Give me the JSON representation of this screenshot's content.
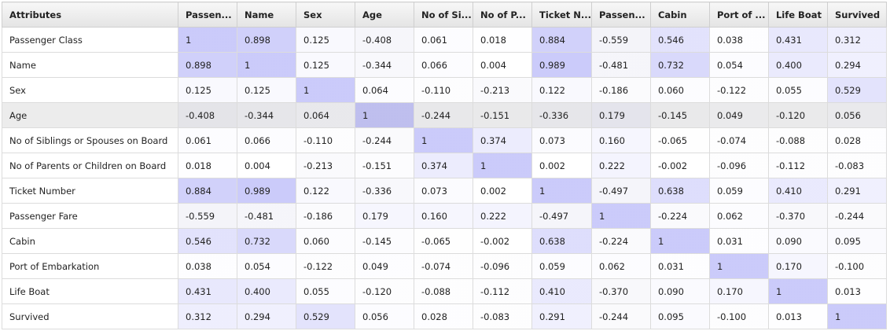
{
  "table": {
    "columns": [
      "Attributes",
      "Passen...",
      "Name",
      "Sex",
      "Age",
      "No of Si...",
      "No of P...",
      "Ticket N...",
      "Passen...",
      "Cabin",
      "Port of ...",
      "Life Boat",
      "Survived"
    ],
    "rows": [
      {
        "label": "Passenger Class",
        "cells": [
          "1",
          "0.898",
          "0.125",
          "-0.408",
          "0.061",
          "0.018",
          "0.884",
          "-0.559",
          "0.546",
          "0.038",
          "0.431",
          "0.312"
        ]
      },
      {
        "label": "Name",
        "cells": [
          "0.898",
          "1",
          "0.125",
          "-0.344",
          "0.066",
          "0.004",
          "0.989",
          "-0.481",
          "0.732",
          "0.054",
          "0.400",
          "0.294"
        ]
      },
      {
        "label": "Sex",
        "cells": [
          "0.125",
          "0.125",
          "1",
          "0.064",
          "-0.110",
          "-0.213",
          "0.122",
          "-0.186",
          "0.060",
          "-0.122",
          "0.055",
          "0.529"
        ]
      },
      {
        "label": "Age",
        "cells": [
          "-0.408",
          "-0.344",
          "0.064",
          "1",
          "-0.244",
          "-0.151",
          "-0.336",
          "0.179",
          "-0.145",
          "0.049",
          "-0.120",
          "0.056"
        ]
      },
      {
        "label": "No of Siblings or Spouses on Board",
        "cells": [
          "0.061",
          "0.066",
          "-0.110",
          "-0.244",
          "1",
          "0.374",
          "0.073",
          "0.160",
          "-0.065",
          "-0.074",
          "-0.088",
          "0.028"
        ]
      },
      {
        "label": "No of Parents or Children on Board",
        "cells": [
          "0.018",
          "0.004",
          "-0.213",
          "-0.151",
          "0.374",
          "1",
          "0.002",
          "0.222",
          "-0.002",
          "-0.096",
          "-0.112",
          "-0.083"
        ]
      },
      {
        "label": "Ticket Number",
        "cells": [
          "0.884",
          "0.989",
          "0.122",
          "-0.336",
          "0.073",
          "0.002",
          "1",
          "-0.497",
          "0.638",
          "0.059",
          "0.410",
          "0.291"
        ]
      },
      {
        "label": "Passenger Fare",
        "cells": [
          "-0.559",
          "-0.481",
          "-0.186",
          "0.179",
          "0.160",
          "0.222",
          "-0.497",
          "1",
          "-0.224",
          "0.062",
          "-0.370",
          "-0.244"
        ]
      },
      {
        "label": "Cabin",
        "cells": [
          "0.546",
          "0.732",
          "0.060",
          "-0.145",
          "-0.065",
          "-0.002",
          "0.638",
          "-0.224",
          "1",
          "0.031",
          "0.090",
          "0.095"
        ]
      },
      {
        "label": "Port of Embarkation",
        "cells": [
          "0.038",
          "0.054",
          "-0.122",
          "0.049",
          "-0.074",
          "-0.096",
          "0.059",
          "0.062",
          "0.031",
          "1",
          "0.170",
          "-0.100"
        ]
      },
      {
        "label": "Life Boat",
        "cells": [
          "0.431",
          "0.400",
          "0.055",
          "-0.120",
          "-0.088",
          "-0.112",
          "0.410",
          "-0.370",
          "0.090",
          "0.170",
          "1",
          "0.013"
        ]
      },
      {
        "label": "Survived",
        "cells": [
          "0.312",
          "0.294",
          "0.529",
          "0.056",
          "0.028",
          "-0.083",
          "0.291",
          "-0.244",
          "0.095",
          "-0.100",
          "0.013",
          "1"
        ]
      }
    ]
  }
}
